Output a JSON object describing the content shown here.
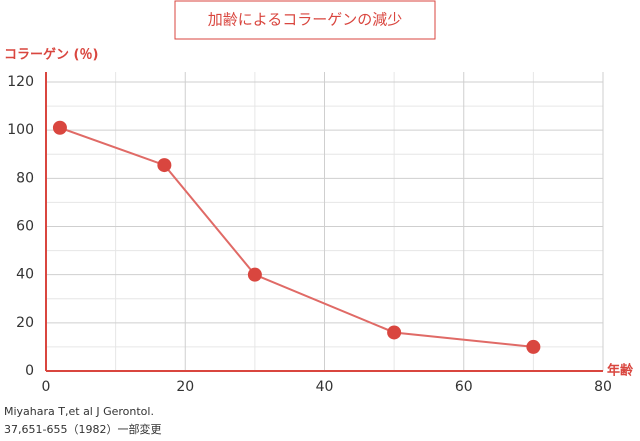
{
  "chart_data": {
    "type": "line",
    "title": "加齢によるコラーゲンの減少",
    "y_label": "コラーゲン (％)",
    "x_label": "年齢",
    "source": [
      "Miyahara T,et al J Gerontol.",
      "37,651-655（1982）一部変更"
    ],
    "x": [
      2,
      17,
      30,
      50,
      70
    ],
    "values": [
      101,
      85.5,
      40,
      16,
      10
    ],
    "color": "#e06a66",
    "marker_color": "#d9463f",
    "axis_color": "#d9463f",
    "xlim": [
      0,
      80
    ],
    "xticks": [
      0,
      20,
      40,
      60,
      80
    ],
    "ylim": [
      0,
      120
    ],
    "yticks": [
      0,
      20,
      40,
      60,
      80,
      100,
      120
    ],
    "grid": true,
    "minor_grid": true
  }
}
